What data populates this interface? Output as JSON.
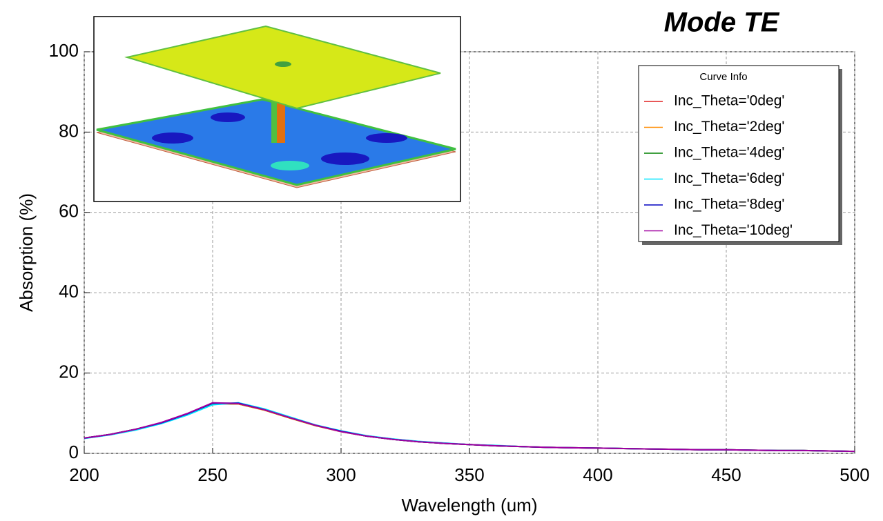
{
  "chart_data": {
    "type": "line",
    "title": "Mode TE",
    "x_label": "Wavelength (um)",
    "y_label": "Absorption (%)",
    "legend_title": "Curve Info",
    "legend": "upper right",
    "grid": true,
    "xlim": [
      200,
      500
    ],
    "ylim": [
      0,
      100
    ],
    "xticks": [
      200,
      250,
      300,
      350,
      400,
      450,
      500
    ],
    "yticks": [
      0,
      20,
      40,
      60,
      80,
      100
    ],
    "x": [
      200,
      210,
      220,
      230,
      240,
      250,
      260,
      270,
      280,
      290,
      300,
      310,
      320,
      330,
      340,
      350,
      360,
      370,
      380,
      390,
      400,
      410,
      420,
      430,
      440,
      450,
      460,
      470,
      480,
      490,
      500
    ],
    "series": [
      {
        "name": "Inc_Theta='0deg'",
        "color": "#e02020",
        "values": [
          3.8,
          4.7,
          6.0,
          7.6,
          9.8,
          12.4,
          12.3,
          10.8,
          8.8,
          6.9,
          5.4,
          4.3,
          3.5,
          2.9,
          2.5,
          2.2,
          1.9,
          1.7,
          1.5,
          1.4,
          1.3,
          1.2,
          1.1,
          1.0,
          0.9,
          0.9,
          0.8,
          0.7,
          0.7,
          0.6,
          0.5
        ]
      },
      {
        "name": "Inc_Theta='2deg'",
        "color": "#ff8c00",
        "values": [
          3.8,
          4.7,
          6.0,
          7.6,
          9.8,
          12.4,
          12.3,
          10.8,
          8.8,
          6.9,
          5.4,
          4.3,
          3.5,
          2.9,
          2.5,
          2.2,
          1.9,
          1.7,
          1.5,
          1.4,
          1.3,
          1.2,
          1.1,
          1.0,
          0.9,
          0.9,
          0.8,
          0.7,
          0.7,
          0.6,
          0.5
        ]
      },
      {
        "name": "Inc_Theta='4deg'",
        "color": "#008000",
        "values": [
          3.8,
          4.7,
          6.0,
          7.6,
          9.7,
          12.3,
          12.4,
          10.9,
          8.9,
          7.0,
          5.5,
          4.3,
          3.5,
          2.9,
          2.5,
          2.2,
          1.9,
          1.7,
          1.5,
          1.4,
          1.3,
          1.2,
          1.1,
          1.0,
          0.9,
          0.9,
          0.8,
          0.7,
          0.7,
          0.6,
          0.5
        ]
      },
      {
        "name": "Inc_Theta='6deg'",
        "color": "#00e5ff",
        "values": [
          3.7,
          4.6,
          5.8,
          7.4,
          9.5,
          12.1,
          12.6,
          11.1,
          9.1,
          7.1,
          5.6,
          4.4,
          3.6,
          3.0,
          2.6,
          2.2,
          2.0,
          1.7,
          1.5,
          1.4,
          1.3,
          1.2,
          1.1,
          1.0,
          0.9,
          0.9,
          0.8,
          0.7,
          0.7,
          0.6,
          0.5
        ]
      },
      {
        "name": "Inc_Theta='8deg'",
        "color": "#0000c0",
        "values": [
          3.8,
          4.7,
          6.0,
          7.6,
          9.8,
          12.5,
          12.5,
          10.9,
          8.9,
          7.0,
          5.5,
          4.3,
          3.5,
          2.9,
          2.5,
          2.2,
          1.9,
          1.7,
          1.5,
          1.4,
          1.3,
          1.2,
          1.1,
          1.0,
          0.9,
          0.9,
          0.8,
          0.7,
          0.7,
          0.6,
          0.5
        ]
      },
      {
        "name": "Inc_Theta='10deg'",
        "color": "#a000a0",
        "values": [
          3.8,
          4.7,
          6.0,
          7.7,
          9.9,
          12.6,
          12.4,
          10.9,
          8.9,
          7.0,
          5.4,
          4.3,
          3.5,
          2.9,
          2.5,
          2.2,
          1.9,
          1.7,
          1.5,
          1.4,
          1.3,
          1.2,
          1.1,
          1.0,
          0.9,
          0.9,
          0.8,
          0.7,
          0.7,
          0.6,
          0.5
        ]
      }
    ]
  }
}
